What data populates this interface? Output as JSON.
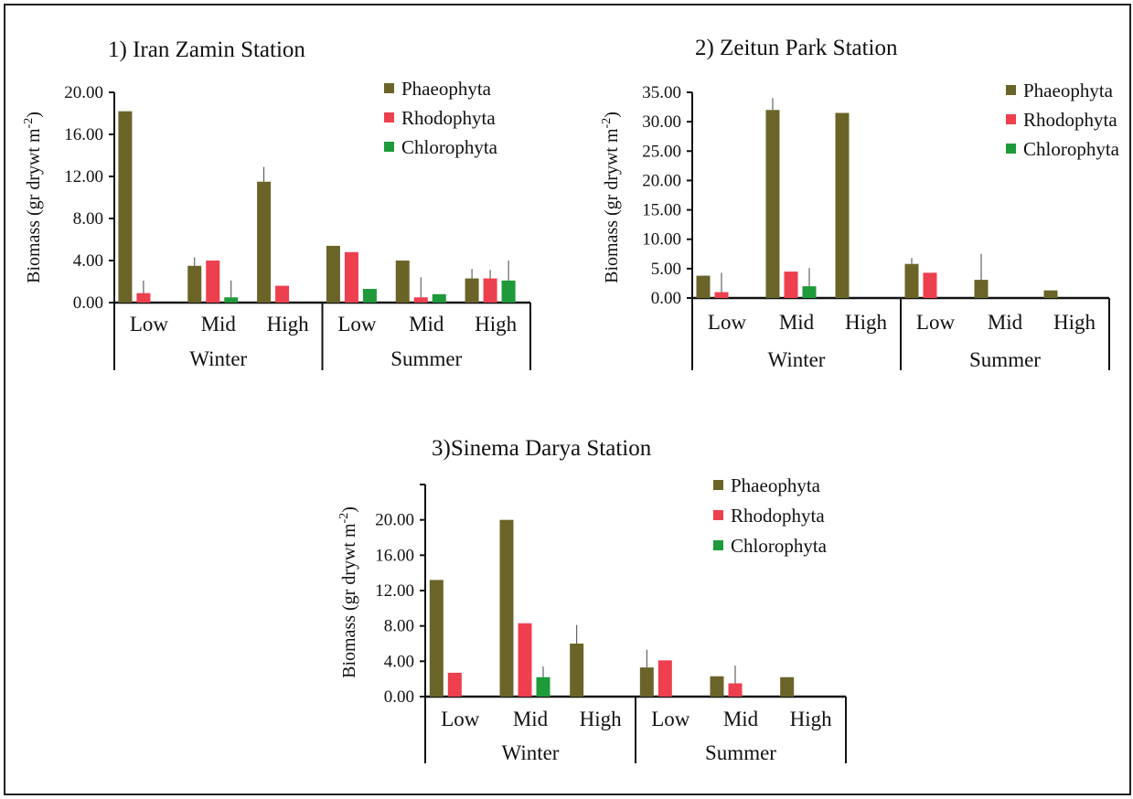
{
  "colors": {
    "Phaeophyta": "#6b6429",
    "Rhodophyta": "#ee3f4e",
    "Chlorophyta": "#1e9a3a",
    "axis": "#111111",
    "error_bar": "#444444"
  },
  "chart_data": [
    {
      "type": "bar",
      "title": "1) Iran Zamin Station",
      "ylabel": "Biomass (gr drywt m",
      "ylabel_superscript": "-2",
      "ylabel_suffix": ")",
      "ylim": [
        0,
        20
      ],
      "yticks": [
        0,
        4,
        8,
        12,
        16,
        20
      ],
      "ytick_labels": [
        "0.00",
        "4.00",
        "8.00",
        "12.00",
        "16.00",
        "20.00"
      ],
      "categories": [
        "Low",
        "Mid",
        "High",
        "Low",
        "Mid",
        "High"
      ],
      "groups": [
        {
          "label": "Winter",
          "span": [
            0,
            2
          ]
        },
        {
          "label": "Summer",
          "span": [
            3,
            5
          ]
        }
      ],
      "legend": "top-right",
      "series": [
        {
          "name": "Phaeophyta",
          "values": [
            18.2,
            3.5,
            11.5,
            5.4,
            4.0,
            2.3
          ],
          "errors": [
            0,
            0.8,
            1.4,
            0,
            0,
            0.9
          ]
        },
        {
          "name": "Rhodophyta",
          "values": [
            0.9,
            4.0,
            1.6,
            4.8,
            0.5,
            2.3
          ],
          "errors": [
            1.2,
            0,
            0,
            0,
            1.9,
            0.8
          ]
        },
        {
          "name": "Chlorophyta",
          "values": [
            0,
            0.5,
            0,
            1.3,
            0.8,
            2.1
          ],
          "errors": [
            0,
            1.6,
            0,
            0,
            0,
            1.9
          ]
        }
      ]
    },
    {
      "type": "bar",
      "title": "2) Zeitun Park Station",
      "ylabel": "Biomass (gr drywt m",
      "ylabel_superscript": "-2",
      "ylabel_suffix": ")",
      "ylim": [
        0,
        35
      ],
      "yticks": [
        0,
        5,
        10,
        15,
        20,
        25,
        30,
        35
      ],
      "ytick_labels": [
        "0.00",
        "5.00",
        "10.00",
        "15.00",
        "20.00",
        "25.00",
        "30.00",
        "35.00"
      ],
      "categories": [
        "Low",
        "Mid",
        "High",
        "Low",
        "Mid",
        "High"
      ],
      "groups": [
        {
          "label": "Winter",
          "span": [
            0,
            2
          ]
        },
        {
          "label": "Summer",
          "span": [
            3,
            5
          ]
        }
      ],
      "legend": "top-right",
      "series": [
        {
          "name": "Phaeophyta",
          "values": [
            3.8,
            32.0,
            31.5,
            5.8,
            3.1,
            1.3
          ],
          "errors": [
            0,
            2.0,
            0,
            1.0,
            4.4,
            0
          ]
        },
        {
          "name": "Rhodophyta",
          "values": [
            1.0,
            4.5,
            0,
            4.3,
            0,
            0
          ],
          "errors": [
            3.3,
            0,
            0,
            0,
            0,
            0
          ]
        },
        {
          "name": "Chlorophyta",
          "values": [
            0,
            2.0,
            0,
            0,
            0,
            0
          ],
          "errors": [
            0,
            3.1,
            0,
            0,
            0,
            0
          ]
        }
      ]
    },
    {
      "type": "bar",
      "title": "3)Sinema Darya Station",
      "ylabel": "Biomass (gr drywt m",
      "ylabel_superscript": "-2",
      "ylabel_suffix": ")",
      "ylim": [
        0,
        24
      ],
      "yticks": [
        0,
        4,
        8,
        12,
        16,
        20,
        24
      ],
      "ytick_labels": [
        "0.00",
        "4.00",
        "8.00",
        "12.00",
        "16.00",
        "20.00",
        ""
      ],
      "categories": [
        "Low",
        "Mid",
        "High",
        "Low",
        "Mid",
        "High"
      ],
      "groups": [
        {
          "label": "Winter",
          "span": [
            0,
            2
          ]
        },
        {
          "label": "Summer",
          "span": [
            3,
            5
          ]
        }
      ],
      "legend": "top-right",
      "series": [
        {
          "name": "Phaeophyta",
          "values": [
            13.2,
            20.0,
            6.0,
            3.3,
            2.3,
            2.2
          ],
          "errors": [
            0,
            0,
            2.1,
            2.0,
            0,
            0
          ]
        },
        {
          "name": "Rhodophyta",
          "values": [
            2.7,
            8.3,
            0,
            4.1,
            1.5,
            0
          ],
          "errors": [
            0,
            0,
            0,
            0,
            2.0,
            0
          ]
        },
        {
          "name": "Chlorophyta",
          "values": [
            0,
            2.2,
            0,
            0,
            0,
            0
          ],
          "errors": [
            0,
            1.2,
            0,
            0,
            0,
            0
          ]
        }
      ]
    }
  ]
}
